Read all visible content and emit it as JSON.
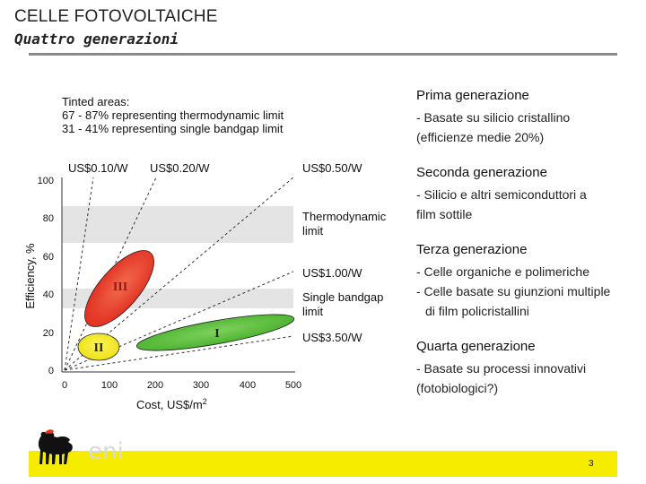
{
  "slide": {
    "title": "CELLE FOTOVOLTAICHE",
    "subtitle": "Quattro generazioni",
    "page_number": "3",
    "logo_text": "eni"
  },
  "figure": {
    "tinted_heading": "Tinted areas:",
    "tinted_line1": "67 - 87% representing thermodynamic limit",
    "tinted_line2": "31 - 41% representing single bandgap limit",
    "top_labels": [
      "US$0.10/W",
      "US$0.20/W",
      "US$0.50/W"
    ],
    "right_labels": [
      "US$1.00/W",
      "US$3.50/W"
    ],
    "band_labels": [
      "Thermodynamic",
      "limit",
      "Single bandgap",
      "limit"
    ],
    "ylabel": "Efficiency, %",
    "xlabel": "Cost, US$/m",
    "xlabel_sup": "2",
    "yticks": [
      "100",
      "80",
      "60",
      "40",
      "20",
      "0"
    ],
    "xticks": [
      "0",
      "100",
      "200",
      "300",
      "400",
      "500"
    ],
    "region_labels": [
      "III",
      "II",
      "I"
    ],
    "colors": {
      "red": "#e83b2b",
      "yellow": "#f2ea1f",
      "green": "#5bbf3c",
      "band": "#e4e4e4"
    }
  },
  "generations": [
    {
      "title": "Prima generazione",
      "lines": [
        "- Basate su silicio cristallino",
        "(efficienze medie 20%)"
      ]
    },
    {
      "title": "Seconda generazione",
      "lines": [
        "- Silicio e altri semiconduttori a",
        "film sottile"
      ]
    },
    {
      "title": "Terza generazione",
      "lines": [
        "- Celle organiche e polimeriche",
        "- Celle basate su giunzioni multiple",
        "di film policristallini"
      ]
    },
    {
      "title": "Quarta generazione",
      "lines": [
        "- Basate su processi innovativi",
        "(fotobiologici?)"
      ]
    }
  ]
}
